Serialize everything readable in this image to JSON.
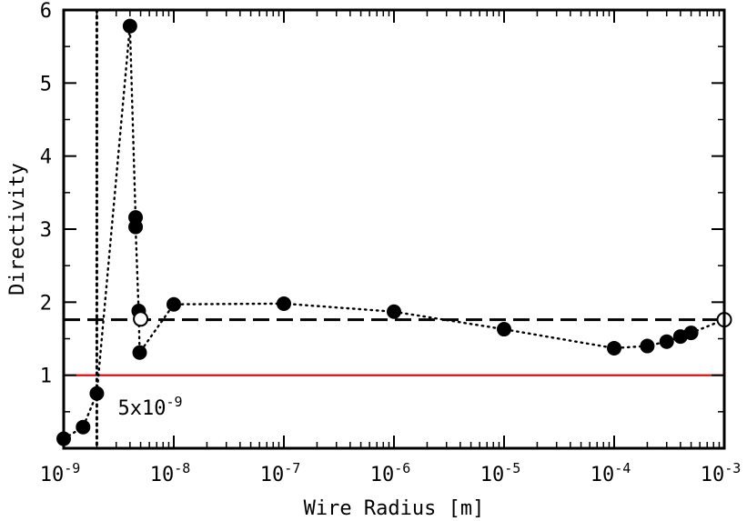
{
  "chart_data": {
    "type": "scatter",
    "xlabel": "Wire Radius [m]",
    "ylabel": "Directivity",
    "xscale": "log",
    "xlim": [
      1e-09,
      0.001
    ],
    "ylim": [
      0,
      6
    ],
    "x_ticks": [
      {
        "value": 1e-09,
        "base": "10",
        "exp": "-9"
      },
      {
        "value": 1e-08,
        "base": "10",
        "exp": "-8"
      },
      {
        "value": 1e-07,
        "base": "10",
        "exp": "-7"
      },
      {
        "value": 1e-06,
        "base": "10",
        "exp": "-6"
      },
      {
        "value": 1e-05,
        "base": "10",
        "exp": "-5"
      },
      {
        "value": 0.0001,
        "base": "10",
        "exp": "-4"
      },
      {
        "value": 0.001,
        "base": "10",
        "exp": "-3"
      }
    ],
    "y_ticks": [
      {
        "value": 1,
        "label": "1"
      },
      {
        "value": 2,
        "label": "2"
      },
      {
        "value": 3,
        "label": "3"
      },
      {
        "value": 4,
        "label": "4"
      },
      {
        "value": 5,
        "label": "5"
      },
      {
        "value": 6,
        "label": "6"
      }
    ],
    "grid": false,
    "series": [
      {
        "style": "filled-markers-dotted-line",
        "points": [
          {
            "x": 1e-09,
            "y": 0.13
          },
          {
            "x": 1.5e-09,
            "y": 0.29
          },
          {
            "x": 2e-09,
            "y": 0.75
          },
          {
            "x": 4e-09,
            "y": 5.78
          },
          {
            "x": 4.5e-09,
            "y": 3.16
          },
          {
            "x": 4.5e-09,
            "y": 3.03
          },
          {
            "x": 4.8e-09,
            "y": 1.88
          },
          {
            "x": 4.9e-09,
            "y": 1.31
          },
          {
            "x": 1e-08,
            "y": 1.97
          },
          {
            "x": 1e-07,
            "y": 1.98
          },
          {
            "x": 1e-06,
            "y": 1.87
          },
          {
            "x": 1e-05,
            "y": 1.63
          },
          {
            "x": 0.0001,
            "y": 1.37
          },
          {
            "x": 0.0002,
            "y": 1.4
          },
          {
            "x": 0.0003,
            "y": 1.46
          },
          {
            "x": 0.0004,
            "y": 1.53
          },
          {
            "x": 0.0005,
            "y": 1.58
          },
          {
            "x": 0.001,
            "y": 1.76
          }
        ]
      }
    ],
    "open_markers": [
      {
        "x": 5e-09,
        "y": 1.77
      },
      {
        "x": 0.001,
        "y": 1.76
      }
    ],
    "reference_lines": [
      {
        "orientation": "horizontal",
        "y": 1.76,
        "style": "dashed",
        "color": "#000000"
      },
      {
        "orientation": "horizontal",
        "y": 1.0,
        "style": "solid",
        "color": "#dd0000"
      },
      {
        "orientation": "vertical",
        "x": 2e-09,
        "style": "dotted",
        "color": "#000000"
      }
    ],
    "annotations": [
      {
        "base": "5x10",
        "exp": "-9",
        "x": 3.1e-09,
        "y": 0.56
      }
    ]
  }
}
